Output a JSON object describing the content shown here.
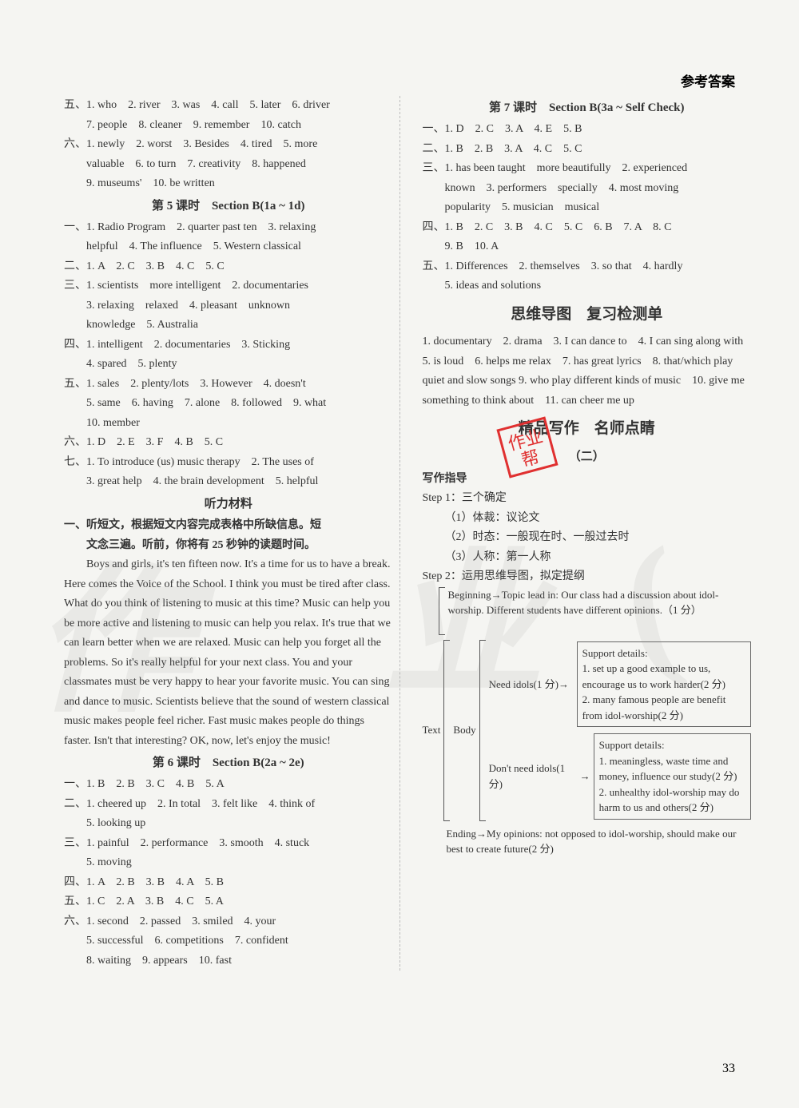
{
  "header": {
    "right": "参考答案"
  },
  "pageNumber": "33",
  "left": {
    "lines": [
      {
        "t": "五、1. who　2. river　3. was　4. call　5. later　6. driver",
        "cls": ""
      },
      {
        "t": "7. people　8. cleaner　9. remember　10. catch",
        "cls": "indent"
      },
      {
        "t": "六、1. newly　2. worst　3. Besides　4. tired　5. more",
        "cls": ""
      },
      {
        "t": "valuable　6. to turn　7. creativity　8. happened",
        "cls": "indent"
      },
      {
        "t": "9. museums'　10. be written",
        "cls": "indent"
      },
      {
        "t": "第 5 课时　Section B(1a ~ 1d)",
        "cls": "section-title"
      },
      {
        "t": "一、1. Radio Program　2. quarter past ten　3. relaxing",
        "cls": ""
      },
      {
        "t": "helpful　4. The influence　5. Western classical",
        "cls": "indent"
      },
      {
        "t": "二、1. A　2. C　3. B　4. C　5. C",
        "cls": ""
      },
      {
        "t": "三、1. scientists　more intelligent　2. documentaries",
        "cls": ""
      },
      {
        "t": "3. relaxing　relaxed　4. pleasant　unknown",
        "cls": "indent"
      },
      {
        "t": "knowledge　5. Australia",
        "cls": "indent"
      },
      {
        "t": "四、1. intelligent　2. documentaries　3. Sticking",
        "cls": ""
      },
      {
        "t": "4. spared　5. plenty",
        "cls": "indent"
      },
      {
        "t": "五、1. sales　2. plenty/lots　3. However　4. doesn't",
        "cls": ""
      },
      {
        "t": "5. same　6. having　7. alone　8. followed　9. what",
        "cls": "indent"
      },
      {
        "t": "10. member",
        "cls": "indent"
      },
      {
        "t": "六、1. D　2. E　3. F　4. B　5. C",
        "cls": ""
      },
      {
        "t": "七、1. To introduce (us) music therapy　2. The uses of",
        "cls": ""
      },
      {
        "t": "3. great help　4. the brain development　5. helpful",
        "cls": "indent"
      },
      {
        "t": "听力材料",
        "cls": "section-title"
      },
      {
        "t": "一、听短文，根据短文内容完成表格中所缺信息。短",
        "cls": "bold"
      },
      {
        "t": "文念三遍。听前，你将有 25 秒钟的读题时间。",
        "cls": "bold indent"
      }
    ],
    "passage": [
      "Boys and girls, it's ten fifteen now. It's a time for us to have a break. Here comes the Voice of the School. I think you must be tired after class. What do you think of listening to music at this time? Music can help you be more active and listening to music can help you relax. It's true that we can learn better when we are relaxed. Music can help you forget all the problems. So it's really helpful for your next class. You and your classmates must be very happy to hear your favorite music. You can sing and dance to music. Scientists believe that the sound of western classical music makes people feel richer. Fast music makes people do things faster. Isn't that interesting? OK, now, let's enjoy the music!"
    ],
    "lines2": [
      {
        "t": "第 6 课时　Section B(2a ~ 2e)",
        "cls": "section-title"
      },
      {
        "t": "一、1. B　2. B　3. C　4. B　5. A",
        "cls": ""
      },
      {
        "t": "二、1. cheered up　2. In total　3. felt like　4. think of",
        "cls": ""
      },
      {
        "t": "5. looking up",
        "cls": "indent"
      },
      {
        "t": "三、1. painful　2. performance　3. smooth　4. stuck",
        "cls": ""
      },
      {
        "t": "5. moving",
        "cls": "indent"
      },
      {
        "t": "四、1. A　2. B　3. B　4. A　5. B",
        "cls": ""
      },
      {
        "t": "五、1. C　2. A　3. B　4. C　5. A",
        "cls": ""
      },
      {
        "t": "六、1. second　2. passed　3. smiled　4. your",
        "cls": ""
      },
      {
        "t": "5. successful　6. competitions　7. confident",
        "cls": "indent"
      },
      {
        "t": "8. waiting　9. appears　10. fast",
        "cls": "indent"
      }
    ]
  },
  "right": {
    "lines": [
      {
        "t": "第 7 课时　Section B(3a ~ Self Check)",
        "cls": "section-title"
      },
      {
        "t": "一、1. D　2. C　3. A　4. E　5. B",
        "cls": ""
      },
      {
        "t": "二、1. B　2. B　3. A　4. C　5. C",
        "cls": ""
      },
      {
        "t": "三、1. has been taught　more beautifully　2. experienced",
        "cls": ""
      },
      {
        "t": "known　3. performers　specially　4. most moving",
        "cls": "indent"
      },
      {
        "t": "popularity　5. musician　musical",
        "cls": "indent"
      },
      {
        "t": "四、1. B　2. C　3. B　4. C　5. C　6. B　7. A　8. C",
        "cls": ""
      },
      {
        "t": "9. B　10. A",
        "cls": "indent"
      },
      {
        "t": "五、1. Differences　2. themselves　3. so that　4. hardly",
        "cls": ""
      },
      {
        "t": "5. ideas and solutions",
        "cls": "indent"
      },
      {
        "t": "思维导图　复习检测单",
        "cls": "big-title"
      },
      {
        "t": "1. documentary　2. drama　3. I can dance to　4. I can sing along with　5. is loud　6. helps me relax　7. has great lyrics　8. that/which play quiet and slow songs 9. who play different kinds of music　10. give me something to think about　11. can cheer me up",
        "cls": ""
      },
      {
        "t": "精品写作　名师点睛",
        "cls": "big-title"
      },
      {
        "t": "（二）",
        "cls": "section-title"
      },
      {
        "t": "写作指导",
        "cls": "bold"
      },
      {
        "t": "Step 1：三个确定",
        "cls": ""
      },
      {
        "t": "（1）体裁：议论文",
        "cls": "indent"
      },
      {
        "t": "（2）时态：一般现在时、一般过去时",
        "cls": "indent"
      },
      {
        "t": "（3）人称：第一人称",
        "cls": "indent"
      },
      {
        "t": "Step 2：运用思维导图，拟定提纲",
        "cls": ""
      }
    ],
    "diagram": {
      "beginning": "Beginning→Topic lead in: Our class had a discussion about idol-worship. Different students have different opinions.（1 分）",
      "needLabel": "Need idols(1 分)→",
      "needDetails": [
        "Support details:",
        "1. set up a good example to us, encourage us to work harder(2 分)",
        "2. many famous people are benefit from idol-worship(2 分)"
      ],
      "dontLabel": "Don't need idols(1 分)",
      "dontDetails": [
        "Support details:",
        "1. meaningless, waste time and money, influence our study(2 分)",
        "2. unhealthy idol-worship may do harm to us and others(2 分)"
      ],
      "textLabel": "Text",
      "bodyLabel": "Body",
      "ending": "Ending→My opinions: not opposed to idol-worship, should make our best to create future(2 分)"
    }
  }
}
